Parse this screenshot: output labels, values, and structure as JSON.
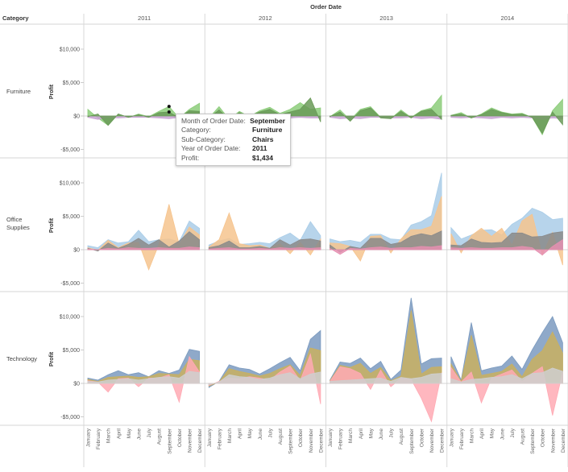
{
  "header": {
    "title": "Order Date",
    "row_dimension_label": "Category"
  },
  "tooltip": {
    "rows": [
      {
        "label": "Month of Order Date:",
        "value": "September"
      },
      {
        "label": "Category:",
        "value": "Furniture"
      },
      {
        "label": "Sub-Category:",
        "value": "Chairs"
      },
      {
        "label": "Year of Order Date:",
        "value": "2011"
      },
      {
        "label": "Profit:",
        "value": "$1,434"
      }
    ]
  },
  "chart_data": {
    "type": "area",
    "ylabel": "Profit",
    "years": [
      "2011",
      "2012",
      "2013",
      "2014"
    ],
    "months": [
      "January",
      "February",
      "March",
      "April",
      "May",
      "June",
      "July",
      "August",
      "September",
      "October",
      "November",
      "December"
    ],
    "yticks": [
      {
        "value": 10000,
        "label": "$10,000"
      },
      {
        "value": 5000,
        "label": "$5,000"
      },
      {
        "value": 0,
        "label": "$0"
      },
      {
        "value": -5000,
        "label": "-$5,000"
      }
    ],
    "ylim": [
      -7000,
      14000
    ],
    "categories": [
      {
        "name": "Furniture",
        "series": [
          {
            "color": "#8ccc7a",
            "values": [
              [
                1000,
                -300,
                -1400,
                300,
                -200,
                300,
                -100,
                700,
                1434,
                -300,
                1000,
                1900
              ],
              [
                -300,
                1400,
                -500,
                700,
                -100,
                800,
                1300,
                400,
                1000,
                2000,
                1000,
                1200
              ],
              [
                -100,
                900,
                -600,
                1000,
                1400,
                -200,
                -400,
                900,
                -200,
                800,
                1200,
                3100
              ],
              [
                100,
                500,
                -300,
                300,
                1200,
                600,
                300,
                400,
                -200,
                -2800,
                800,
                2500
              ]
            ]
          },
          {
            "color": "#c9a3d4",
            "values": [
              [
                -200,
                -500,
                -200,
                -300,
                -200,
                -200,
                -200,
                -300,
                -400,
                -200,
                -400,
                -300
              ],
              [
                -200,
                -300,
                -200,
                -300,
                -200,
                -300,
                -200,
                -200,
                -300,
                -200,
                -300,
                -300
              ],
              [
                -200,
                -400,
                -300,
                -400,
                -200,
                -200,
                -300,
                -300,
                -200,
                -400,
                -300,
                -500
              ],
              [
                -200,
                -300,
                -200,
                -300,
                -400,
                -200,
                -300,
                -200,
                -300,
                -500,
                -300,
                -400
              ]
            ]
          },
          {
            "color": "#6a9a58",
            "values": [
              [
                -100,
                300,
                -1400,
                300,
                -200,
                200,
                -200,
                500,
                600,
                -300,
                800,
                700
              ],
              [
                -300,
                900,
                -500,
                500,
                -100,
                600,
                1000,
                200,
                600,
                1000,
                2700,
                -900
              ],
              [
                -100,
                600,
                -800,
                800,
                1200,
                -300,
                -400,
                700,
                -300,
                700,
                1000,
                -500
              ],
              [
                100,
                300,
                -300,
                200,
                1000,
                500,
                200,
                300,
                -200,
                -2600,
                600,
                -1300
              ]
            ]
          }
        ]
      },
      {
        "name": "Office Supplies",
        "series": [
          {
            "color": "#aacde8",
            "values": [
              [
                600,
                300,
                1500,
                1000,
                1200,
                2900,
                1200,
                1500,
                1600,
                1200,
                4300,
                3200
              ],
              [
                700,
                1300,
                1700,
                800,
                900,
                1100,
                900,
                1800,
                2500,
                1400,
                4200,
                2100
              ],
              [
                1600,
                1200,
                1400,
                1100,
                2300,
                2300,
                1600,
                1500,
                3700,
                4200,
                5100,
                11500
              ],
              [
                3300,
                1600,
                2200,
                2900,
                3000,
                2200,
                3800,
                4700,
                6200,
                5600,
                4500,
                4700
              ]
            ]
          },
          {
            "color": "#f6c48e",
            "values": [
              [
                300,
                -100,
                1400,
                300,
                1000,
                1100,
                -3000,
                800,
                6800,
                800,
                3400,
                2200
              ],
              [
                400,
                1500,
                5500,
                900,
                600,
                700,
                200,
                900,
                -600,
                1100,
                -800,
                1600
              ],
              [
                1000,
                900,
                500,
                -1700,
                2000,
                2100,
                -500,
                1600,
                3000,
                3000,
                3500,
                8000
              ],
              [
                2400,
                -500,
                2100,
                3200,
                2000,
                3200,
                700,
                4300,
                5300,
                -800,
                2600,
                -2300
              ]
            ]
          },
          {
            "color": "#8a8a8a",
            "values": [
              [
                200,
                -200,
                1000,
                200,
                800,
                1700,
                700,
                1500,
                400,
                1300,
                2700,
                1500
              ],
              [
                300,
                600,
                1300,
                300,
                300,
                500,
                200,
                1500,
                700,
                1500,
                1600,
                1300
              ],
              [
                700,
                -400,
                500,
                200,
                1700,
                1700,
                800,
                1100,
                2000,
                2400,
                2100,
                2800
              ],
              [
                700,
                600,
                1600,
                1100,
                1000,
                1100,
                2500,
                2500,
                1900,
                2000,
                2500,
                2700
              ]
            ]
          },
          {
            "color": "#e58fb0",
            "values": [
              [
                100,
                0,
                200,
                100,
                300,
                200,
                200,
                300,
                200,
                200,
                400,
                300
              ],
              [
                100,
                200,
                300,
                100,
                100,
                200,
                100,
                300,
                200,
                300,
                200,
                300
              ],
              [
                200,
                -700,
                200,
                100,
                300,
                400,
                200,
                300,
                300,
                500,
                400,
                600
              ],
              [
                300,
                200,
                300,
                200,
                200,
                300,
                300,
                500,
                300,
                -800,
                500,
                1500
              ]
            ]
          }
        ]
      },
      {
        "name": "Technology",
        "series": [
          {
            "color": "#7b9abf",
            "values": [
              [
                800,
                500,
                1300,
                1900,
                1300,
                1600,
                1000,
                1900,
                1500,
                2000,
                5100,
                4800
              ],
              [
                -600,
                300,
                2800,
                2300,
                2100,
                1400,
                2200,
                3100,
                3900,
                1900,
                6600,
                7900
              ],
              [
                500,
                3200,
                3000,
                3800,
                2200,
                3300,
                600,
                2000,
                12800,
                2900,
                3700,
                3800
              ],
              [
                4000,
                500,
                9100,
                1900,
                2300,
                2600,
                4100,
                2100,
                5000,
                7600,
                10000,
                6100
              ]
            ]
          },
          {
            "color": "#c9b060",
            "values": [
              [
                600,
                300,
                900,
                1000,
                1100,
                900,
                1000,
                1500,
                1400,
                1300,
                3600,
                3400
              ],
              [
                -400,
                200,
                2200,
                1800,
                1500,
                1100,
                1500,
                2200,
                2800,
                1200,
                5300,
                4900
              ],
              [
                400,
                2700,
                2400,
                3000,
                1500,
                2400,
                400,
                1100,
                10900,
                1400,
                2400,
                2500
              ],
              [
                2900,
                300,
                7200,
                1200,
                1500,
                1800,
                2900,
                1000,
                3600,
                4900,
                7700,
                4500
              ]
            ]
          },
          {
            "color": "#ffaab4",
            "values": [
              [
                400,
                200,
                -1300,
                700,
                800,
                -500,
                800,
                800,
                1300,
                -2800,
                4000,
                1700
              ],
              [
                -300,
                300,
                800,
                700,
                1000,
                800,
                500,
                1700,
                2600,
                400,
                4400,
                -3100
              ],
              [
                300,
                2500,
                2200,
                1500,
                -900,
                2000,
                -500,
                800,
                600,
                -2200,
                -5700,
                1600
              ],
              [
                2400,
                200,
                1700,
                -2900,
                800,
                1400,
                2000,
                300,
                1500,
                2500,
                -4800,
                1700
              ]
            ]
          },
          {
            "color": "#cfcfcf",
            "values": [
              [
                300,
                200,
                500,
                600,
                700,
                500,
                700,
                900,
                1000,
                800,
                1800,
                1600
              ],
              [
                -200,
                200,
                1300,
                1000,
                900,
                600,
                800,
                1300,
                1600,
                700,
                1400,
                1700
              ],
              [
                300,
                400,
                500,
                600,
                700,
                800,
                300,
                900,
                700,
                900,
                1400,
                1500
              ],
              [
                700,
                200,
                600,
                700,
                900,
                1000,
                1300,
                700,
                1500,
                1600,
                2300,
                1800
              ]
            ]
          }
        ]
      }
    ],
    "annotations": [
      {
        "category": "Furniture",
        "year": "2011",
        "month": "September",
        "value": 1434
      },
      {
        "category": "Furniture",
        "year": "2011",
        "month": "September",
        "value": 600
      }
    ]
  }
}
